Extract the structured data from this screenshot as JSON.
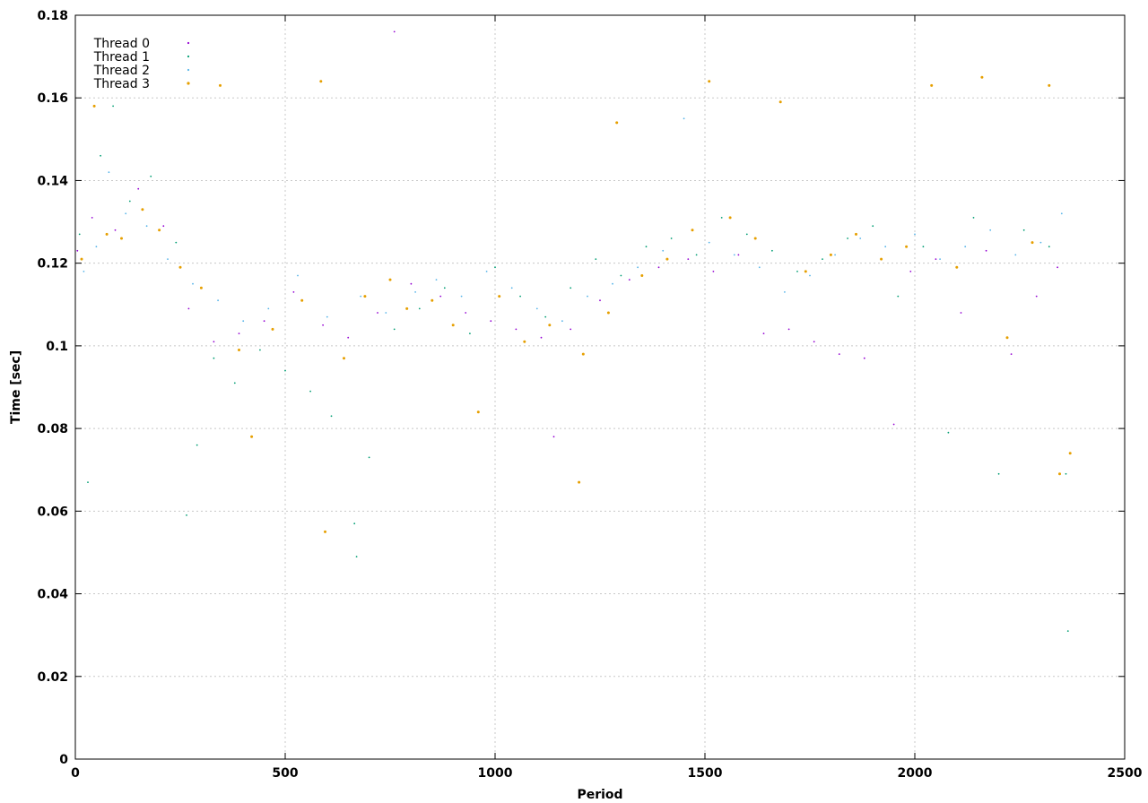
{
  "chart_data": {
    "type": "scatter",
    "title": "",
    "xlabel": "Period",
    "ylabel": "Time [sec]",
    "xlim": [
      0,
      2500
    ],
    "ylim": [
      0,
      0.18
    ],
    "xticks": [
      0,
      500,
      1000,
      1500,
      2000,
      2500
    ],
    "xtick_labels": [
      "0",
      "500",
      "1000",
      "1500",
      "2000",
      "2500"
    ],
    "yticks": [
      0,
      0.02,
      0.04,
      0.06,
      0.08,
      0.1,
      0.12,
      0.14,
      0.16,
      0.18
    ],
    "ytick_labels": [
      "0",
      "0.02",
      "0.04",
      "0.06",
      "0.08",
      "0.1",
      "0.12",
      "0.14",
      "0.16",
      "0.18"
    ],
    "grid": true,
    "legend_position": "top-left",
    "series": [
      {
        "name": "Thread 0",
        "color": "#9400d3",
        "marker": "dot",
        "x": [
          5,
          40,
          95,
          150,
          210,
          270,
          330,
          390,
          450,
          520,
          590,
          650,
          720,
          760,
          800,
          870,
          930,
          990,
          1050,
          1110,
          1140,
          1180,
          1250,
          1320,
          1390,
          1460,
          1520,
          1580,
          1640,
          1700,
          1760,
          1820,
          1880,
          1950,
          1990,
          2050,
          2110,
          2170,
          2230,
          2290,
          2340
        ],
        "y": [
          0.123,
          0.131,
          0.128,
          0.138,
          0.129,
          0.109,
          0.101,
          0.103,
          0.106,
          0.113,
          0.105,
          0.102,
          0.108,
          0.176,
          0.115,
          0.112,
          0.108,
          0.106,
          0.104,
          0.102,
          0.078,
          0.104,
          0.111,
          0.116,
          0.119,
          0.121,
          0.118,
          0.122,
          0.103,
          0.104,
          0.101,
          0.098,
          0.097,
          0.081,
          0.118,
          0.121,
          0.108,
          0.123,
          0.098,
          0.112,
          0.119
        ]
      },
      {
        "name": "Thread 1",
        "color": "#009e73",
        "marker": "dot",
        "x": [
          10,
          30,
          60,
          90,
          130,
          180,
          240,
          265,
          290,
          330,
          380,
          440,
          500,
          560,
          610,
          665,
          670,
          700,
          760,
          820,
          880,
          940,
          1000,
          1060,
          1120,
          1180,
          1240,
          1300,
          1360,
          1420,
          1480,
          1540,
          1600,
          1660,
          1720,
          1780,
          1840,
          1900,
          1960,
          2020,
          2080,
          2140,
          2200,
          2260,
          2320,
          2360,
          2365
        ],
        "y": [
          0.127,
          0.067,
          0.146,
          0.158,
          0.135,
          0.141,
          0.125,
          0.059,
          0.076,
          0.097,
          0.091,
          0.099,
          0.094,
          0.089,
          0.083,
          0.057,
          0.049,
          0.073,
          0.104,
          0.109,
          0.114,
          0.103,
          0.119,
          0.112,
          0.107,
          0.114,
          0.121,
          0.117,
          0.124,
          0.126,
          0.122,
          0.131,
          0.127,
          0.123,
          0.118,
          0.121,
          0.126,
          0.129,
          0.112,
          0.124,
          0.079,
          0.131,
          0.069,
          0.128,
          0.124,
          0.069,
          0.031
        ]
      },
      {
        "name": "Thread 2",
        "color": "#56b4e9",
        "marker": "dot",
        "x": [
          20,
          50,
          80,
          120,
          170,
          220,
          280,
          340,
          400,
          460,
          530,
          600,
          680,
          740,
          810,
          860,
          920,
          980,
          1040,
          1100,
          1160,
          1220,
          1280,
          1340,
          1400,
          1450,
          1510,
          1570,
          1630,
          1690,
          1750,
          1810,
          1870,
          1930,
          2000,
          2060,
          2120,
          2180,
          2240,
          2300,
          2350
        ],
        "y": [
          0.118,
          0.124,
          0.142,
          0.132,
          0.129,
          0.121,
          0.115,
          0.111,
          0.106,
          0.109,
          0.117,
          0.107,
          0.112,
          0.108,
          0.113,
          0.116,
          0.112,
          0.118,
          0.114,
          0.109,
          0.106,
          0.112,
          0.115,
          0.119,
          0.123,
          0.155,
          0.125,
          0.122,
          0.119,
          0.113,
          0.117,
          0.122,
          0.126,
          0.124,
          0.127,
          0.121,
          0.124,
          0.128,
          0.122,
          0.125,
          0.132
        ]
      },
      {
        "name": "Thread 3",
        "color": "#e69f00",
        "marker": "dot",
        "x": [
          15,
          45,
          75,
          110,
          160,
          200,
          250,
          300,
          345,
          390,
          420,
          470,
          540,
          585,
          595,
          640,
          690,
          750,
          790,
          850,
          900,
          960,
          1010,
          1070,
          1130,
          1200,
          1210,
          1270,
          1290,
          1350,
          1410,
          1470,
          1510,
          1560,
          1620,
          1680,
          1740,
          1800,
          1860,
          1920,
          1980,
          2040,
          2100,
          2160,
          2220,
          2280,
          2320,
          2345,
          2370
        ],
        "y": [
          0.121,
          0.158,
          0.127,
          0.126,
          0.133,
          0.128,
          0.119,
          0.114,
          0.163,
          0.099,
          0.078,
          0.104,
          0.111,
          0.164,
          0.055,
          0.097,
          0.112,
          0.116,
          0.109,
          0.111,
          0.105,
          0.084,
          0.112,
          0.101,
          0.105,
          0.067,
          0.098,
          0.108,
          0.154,
          0.117,
          0.121,
          0.128,
          0.164,
          0.131,
          0.126,
          0.159,
          0.118,
          0.122,
          0.127,
          0.121,
          0.124,
          0.163,
          0.119,
          0.165,
          0.102,
          0.125,
          0.163,
          0.069,
          0.074
        ]
      }
    ]
  }
}
